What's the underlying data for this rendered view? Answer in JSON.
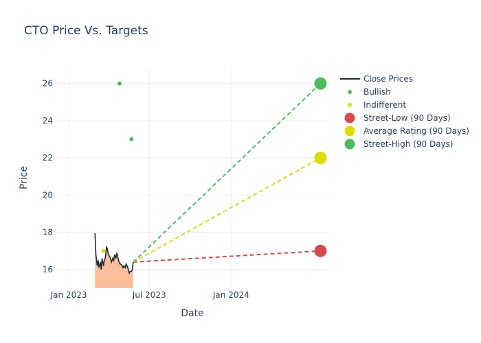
{
  "chart_data": {
    "type": "line",
    "title": "CTO Price Vs. Targets",
    "xlabel": "Date",
    "ylabel": "Price",
    "x_range": [
      "2022-12-01",
      "2024-08-10"
    ],
    "y_range": [
      15.0,
      26.8
    ],
    "x_ticks": [
      {
        "date": "2023-01-01",
        "label": "Jan 2023"
      },
      {
        "date": "2023-07-01",
        "label": "Jul 2023"
      },
      {
        "date": "2024-01-01",
        "label": "Jan 2024"
      }
    ],
    "y_ticks": [
      16,
      18,
      20,
      22,
      24,
      26
    ],
    "grid": true,
    "legend_position": "top-right",
    "colors": {
      "close": "#1f2937",
      "close_fill": "#fbbf9b",
      "bullish": "#4cbb5c",
      "indifferent": "#dddd00",
      "street_low": "#d9474f",
      "average": "#dddd00",
      "street_high": "#4cbb5c"
    },
    "legend": [
      {
        "key": "close",
        "label": "Close Prices",
        "symbol": "line"
      },
      {
        "key": "bullish",
        "label": "Bullish",
        "symbol": "small-dot"
      },
      {
        "key": "indifferent",
        "label": "Indifferent",
        "symbol": "small-dot"
      },
      {
        "key": "street_low",
        "label": "Street-Low (90 Days)",
        "symbol": "big-dot"
      },
      {
        "key": "average",
        "label": "Average Rating (90 Days)",
        "symbol": "big-dot"
      },
      {
        "key": "street_high",
        "label": "Street-High (90 Days)",
        "symbol": "big-dot"
      }
    ],
    "close_prices": [
      [
        "2023-03-01",
        17.95
      ],
      [
        "2023-03-03",
        16.8
      ],
      [
        "2023-03-06",
        16.2
      ],
      [
        "2023-03-08",
        16.5
      ],
      [
        "2023-03-10",
        16.1
      ],
      [
        "2023-03-13",
        16.4
      ],
      [
        "2023-03-15",
        16.0
      ],
      [
        "2023-03-17",
        16.6
      ],
      [
        "2023-03-20",
        16.2
      ],
      [
        "2023-03-22",
        16.5
      ],
      [
        "2023-03-24",
        16.6
      ],
      [
        "2023-03-27",
        17.2
      ],
      [
        "2023-03-29",
        17.1
      ],
      [
        "2023-03-31",
        16.8
      ],
      [
        "2023-04-03",
        16.7
      ],
      [
        "2023-04-05",
        16.6
      ],
      [
        "2023-04-07",
        16.4
      ],
      [
        "2023-04-10",
        16.6
      ],
      [
        "2023-04-12",
        16.5
      ],
      [
        "2023-04-14",
        16.8
      ],
      [
        "2023-04-17",
        16.6
      ],
      [
        "2023-04-19",
        16.9
      ],
      [
        "2023-04-21",
        16.7
      ],
      [
        "2023-04-24",
        16.4
      ],
      [
        "2023-04-26",
        16.3
      ],
      [
        "2023-04-28",
        16.3
      ],
      [
        "2023-05-01",
        16.2
      ],
      [
        "2023-05-03",
        16.1
      ],
      [
        "2023-05-05",
        16.2
      ],
      [
        "2023-05-08",
        16.1
      ],
      [
        "2023-05-10",
        16.3
      ],
      [
        "2023-05-12",
        16.2
      ],
      [
        "2023-05-15",
        16.0
      ],
      [
        "2023-05-17",
        15.8
      ],
      [
        "2023-05-19",
        15.9
      ],
      [
        "2023-05-22",
        15.9
      ],
      [
        "2023-05-24",
        16.0
      ],
      [
        "2023-05-26",
        16.4
      ]
    ],
    "bullish": [
      [
        "2023-04-25",
        26
      ],
      [
        "2023-05-22",
        23
      ]
    ],
    "indifferent": [
      [
        "2023-03-20",
        17.0
      ]
    ],
    "projection_start": [
      "2023-05-26",
      16.4
    ],
    "targets": [
      {
        "key": "street_low",
        "date": "2024-07-20",
        "value": 17
      },
      {
        "key": "average",
        "date": "2024-07-20",
        "value": 22
      },
      {
        "key": "street_high",
        "date": "2024-07-20",
        "value": 26
      }
    ]
  }
}
